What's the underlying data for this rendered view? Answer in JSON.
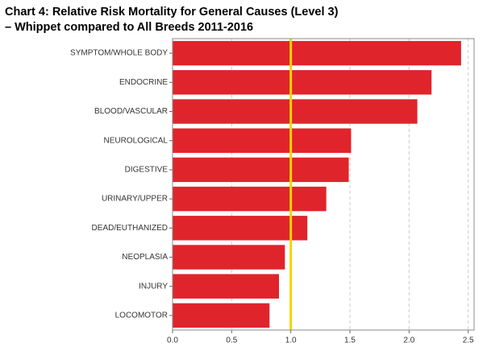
{
  "chart_data": {
    "type": "hbar",
    "title": "Chart 4: Relative Risk Mortality for General Causes (Level 3)",
    "subtitle": "– Whippet compared to All Breeds 2011-2016",
    "categories": [
      "SYMPTOM/WHOLE BODY",
      "ENDOCRINE",
      "BLOOD/VASCULAR",
      "NEUROLOGICAL",
      "DIGESTIVE",
      "URINARY/UPPER",
      "DEAD/EUTHANIZED",
      "NEOPLASIA",
      "INJURY",
      "LOCOMOTOR"
    ],
    "values": [
      2.44,
      2.19,
      2.07,
      1.51,
      1.49,
      1.3,
      1.14,
      0.95,
      0.9,
      0.82
    ],
    "color": "#e0242b",
    "reference_line": 1,
    "reference_color": "#f2d600",
    "xlim": [
      0,
      2.55
    ],
    "xticks": [
      {
        "value": 0,
        "label": "0.0"
      },
      0.5,
      {
        "value": 1,
        "label": "1.0"
      },
      1.5,
      {
        "value": 2,
        "label": "2.0"
      },
      2.5
    ],
    "grid": true
  }
}
